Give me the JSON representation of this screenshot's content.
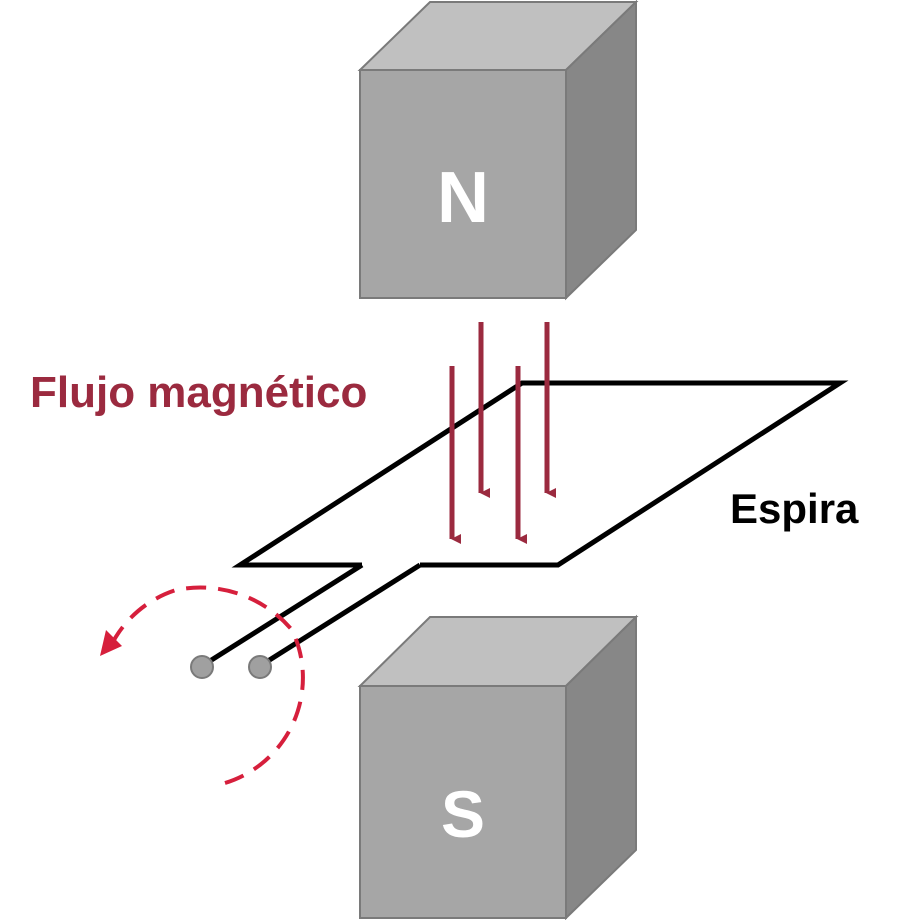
{
  "labels": {
    "north": "N",
    "south": "S",
    "flux": "Flujo magnético",
    "loop": "Espira"
  },
  "colors": {
    "flux": "#9b2a3f",
    "rotation": "#d61f3c",
    "magnet_front": "#a6a6a6",
    "magnet_top": "#c0c0c0",
    "magnet_side": "#878787",
    "wire": "#000000",
    "terminal": "#a0a0a0"
  }
}
